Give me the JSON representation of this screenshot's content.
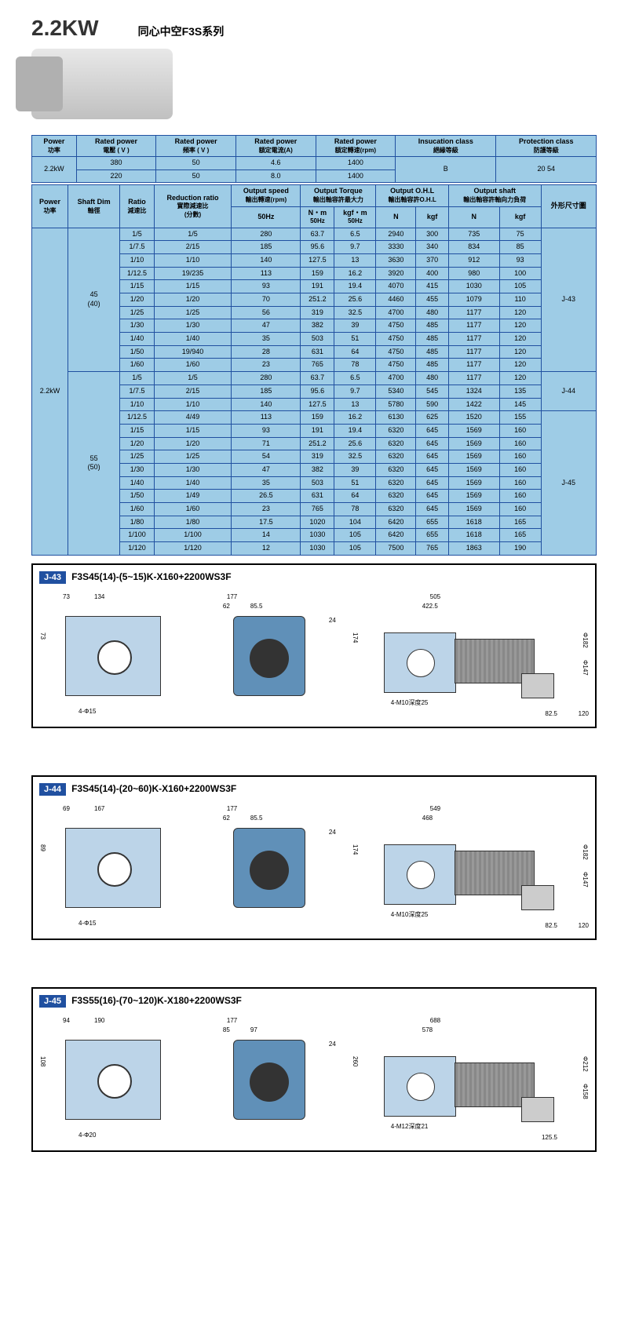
{
  "header": {
    "power": "2.2KW",
    "series": "同心中空F3S系列"
  },
  "table1": {
    "headers": {
      "power": "Power",
      "power_sub": "功率",
      "rpv": "Rated power",
      "rpv_sub": "電壓 ( V )",
      "rpf": "Rated power",
      "rpf_sub": "頻率 ( V )",
      "rpa": "Rated power",
      "rpa_sub": "額定電流(A)",
      "rpm": "Rated power",
      "rpm_sub": "額定轉速(rpm)",
      "ins": "Insucation class",
      "ins_sub": "絕緣等級",
      "prot": "Protection class",
      "prot_sub": "防護等級"
    },
    "power_val": "2.2kW",
    "ins_val": "B",
    "prot_val": "20   54",
    "rows": [
      [
        "380",
        "50",
        "4.6",
        "1400"
      ],
      [
        "220",
        "50",
        "8.0",
        "1400"
      ]
    ]
  },
  "table2": {
    "headers": {
      "power": "Power",
      "power_sub": "功率",
      "shaft": "Shaft Dim",
      "shaft_sub": "軸徑",
      "ratio": "Ratio",
      "ratio_sub": "減速比",
      "redr": "Reduction ratio",
      "redr_sub": "實際減速比",
      "redr_sub2": "(分數)",
      "ospd": "Output speed",
      "ospd_sub": "輸出轉速(rpm)",
      "ospd_sub2": "50Hz",
      "otrq": "Output Torque",
      "otrq_sub": "輸出軸容許最大力",
      "nm": "N・m",
      "nm_sub": "50Hz",
      "kgfm": "kgf・m",
      "kgfm_sub": "50Hz",
      "ohl": "Output O.H.L",
      "ohl_sub": "輸出軸容許O.H.L",
      "n": "N",
      "kgf_h": "kgf",
      "oshf": "Output shaft",
      "oshf_sub": "輸出軸容許軸向力負荷",
      "n2": "N",
      "kgf2": "kgf",
      "ext": "外形尺寸圖"
    },
    "power_val": "2.2kW",
    "groups": [
      {
        "shaft": "45\n(40)",
        "ext": "J-43",
        "rows": [
          [
            "1/5",
            "1/5",
            "280",
            "63.7",
            "6.5",
            "2940",
            "300",
            "735",
            "75"
          ],
          [
            "1/7.5",
            "2/15",
            "185",
            "95.6",
            "9.7",
            "3330",
            "340",
            "834",
            "85"
          ],
          [
            "1/10",
            "1/10",
            "140",
            "127.5",
            "13",
            "3630",
            "370",
            "912",
            "93"
          ],
          [
            "1/12.5",
            "19/235",
            "113",
            "159",
            "16.2",
            "3920",
            "400",
            "980",
            "100"
          ],
          [
            "1/15",
            "1/15",
            "93",
            "191",
            "19.4",
            "4070",
            "415",
            "1030",
            "105"
          ],
          [
            "1/20",
            "1/20",
            "70",
            "251.2",
            "25.6",
            "4460",
            "455",
            "1079",
            "110"
          ],
          [
            "1/25",
            "1/25",
            "56",
            "319",
            "32.5",
            "4700",
            "480",
            "1177",
            "120"
          ],
          [
            "1/30",
            "1/30",
            "47",
            "382",
            "39",
            "4750",
            "485",
            "1177",
            "120"
          ],
          [
            "1/40",
            "1/40",
            "35",
            "503",
            "51",
            "4750",
            "485",
            "1177",
            "120"
          ],
          [
            "1/50",
            "19/940",
            "28",
            "631",
            "64",
            "4750",
            "485",
            "1177",
            "120"
          ],
          [
            "1/60",
            "1/60",
            "23",
            "765",
            "78",
            "4750",
            "485",
            "1177",
            "120"
          ]
        ]
      },
      {
        "shaft": "55\n(50)",
        "ext_top": "J-44",
        "ext_bot": "J-45",
        "rows": [
          [
            "1/5",
            "1/5",
            "280",
            "63.7",
            "6.5",
            "4700",
            "480",
            "1177",
            "120"
          ],
          [
            "1/7.5",
            "2/15",
            "185",
            "95.6",
            "9.7",
            "5340",
            "545",
            "1324",
            "135"
          ],
          [
            "1/10",
            "1/10",
            "140",
            "127.5",
            "13",
            "5780",
            "590",
            "1422",
            "145"
          ],
          [
            "1/12.5",
            "4/49",
            "113",
            "159",
            "16.2",
            "6130",
            "625",
            "1520",
            "155"
          ],
          [
            "1/15",
            "1/15",
            "93",
            "191",
            "19.4",
            "6320",
            "645",
            "1569",
            "160"
          ],
          [
            "1/20",
            "1/20",
            "71",
            "251.2",
            "25.6",
            "6320",
            "645",
            "1569",
            "160"
          ],
          [
            "1/25",
            "1/25",
            "54",
            "319",
            "32.5",
            "6320",
            "645",
            "1569",
            "160"
          ],
          [
            "1/30",
            "1/30",
            "47",
            "382",
            "39",
            "6320",
            "645",
            "1569",
            "160"
          ],
          [
            "1/40",
            "1/40",
            "35",
            "503",
            "51",
            "6320",
            "645",
            "1569",
            "160"
          ],
          [
            "1/50",
            "1/49",
            "26.5",
            "631",
            "64",
            "6320",
            "645",
            "1569",
            "160"
          ],
          [
            "1/60",
            "1/60",
            "23",
            "765",
            "78",
            "6320",
            "645",
            "1569",
            "160"
          ],
          [
            "1/80",
            "1/80",
            "17.5",
            "1020",
            "104",
            "6420",
            "655",
            "1618",
            "165"
          ],
          [
            "1/100",
            "1/100",
            "14",
            "1030",
            "105",
            "6420",
            "655",
            "1618",
            "165"
          ],
          [
            "1/120",
            "1/120",
            "12",
            "1030",
            "105",
            "7500",
            "765",
            "1863",
            "190"
          ]
        ]
      }
    ]
  },
  "diagrams": [
    {
      "label": "J-43",
      "title": "F3S45(14)-(5~15)K-X160+2200WS3F",
      "dims": {
        "total": "505",
        "sub1": "422.5",
        "left_w": "134",
        "left_t": "73",
        "mid": "177",
        "mid_s": "62",
        "mid_s2": "85.5",
        "h1": "73",
        "h2": "174",
        "bolts": "4-Φ15",
        "thread": "4-M10深度25",
        "motor_d": "Φ182",
        "motor_d2": "Φ147",
        "jb": "82.5",
        "jb2": "120"
      }
    },
    {
      "label": "J-44",
      "title": "F3S45(14)-(20~60)K-X160+2200WS3F",
      "dims": {
        "total": "549",
        "sub1": "468",
        "left_w": "167",
        "left_t": "69",
        "mid": "177",
        "mid_s": "62",
        "mid_s2": "85.5",
        "h1": "89",
        "h2": "174",
        "bolts": "4-Φ15",
        "thread": "4-M10深度25",
        "motor_d": "Φ182",
        "motor_d2": "Φ147",
        "jb": "82.5",
        "jb2": "120"
      }
    },
    {
      "label": "J-45",
      "title": "F3S55(16)-(70~120)K-X180+2200WS3F",
      "dims": {
        "total": "688",
        "sub1": "578",
        "left_w": "190",
        "left_t": "94",
        "mid": "177",
        "mid_s": "85",
        "mid_s2": "97",
        "h1": "108",
        "h2": "260",
        "bolts": "4-Φ20",
        "thread": "4-M12深度21",
        "motor_d": "Φ212",
        "motor_d2": "Φ158",
        "jb": "125.5",
        "jb2": ""
      }
    }
  ]
}
